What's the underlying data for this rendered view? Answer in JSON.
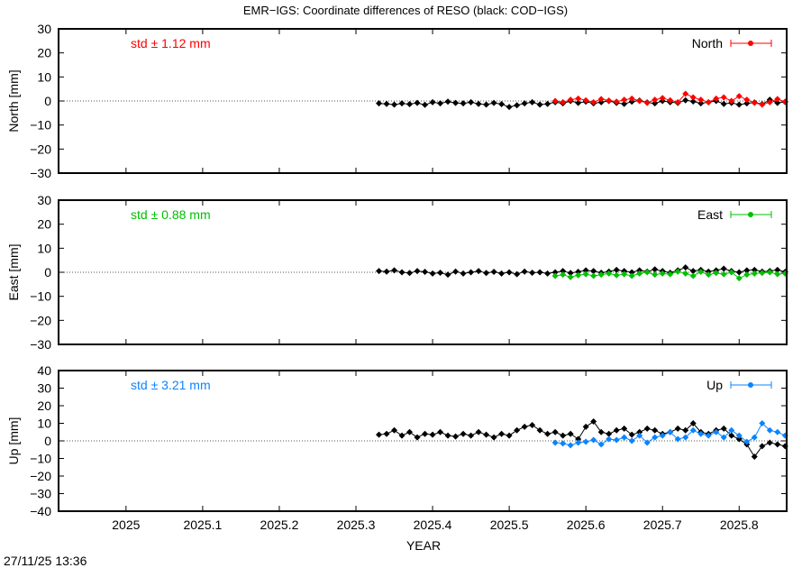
{
  "chart_data": {
    "type": "line",
    "title": "EMR−IGS: Coordinate differences of RESO (black: COD−IGS)",
    "xlabel": "YEAR",
    "xlim": [
      2024.912,
      2025.862
    ],
    "xticks": [
      "2025",
      "2025.1",
      "2025.2",
      "2025.3",
      "2025.4",
      "2025.5",
      "2025.6",
      "2025.7",
      "2025.8"
    ],
    "timestamp": "27/11/25 13:36",
    "x_black": [
      2025.33,
      2025.34,
      2025.35,
      2025.36,
      2025.37,
      2025.38,
      2025.39,
      2025.4,
      2025.41,
      2025.42,
      2025.43,
      2025.44,
      2025.45,
      2025.46,
      2025.47,
      2025.48,
      2025.49,
      2025.5,
      2025.51,
      2025.52,
      2025.53,
      2025.54,
      2025.55,
      2025.56,
      2025.57,
      2025.58,
      2025.59,
      2025.6,
      2025.61,
      2025.62,
      2025.63,
      2025.64,
      2025.65,
      2025.66,
      2025.67,
      2025.68,
      2025.69,
      2025.7,
      2025.71,
      2025.72,
      2025.73,
      2025.74,
      2025.75,
      2025.76,
      2025.77,
      2025.78,
      2025.79,
      2025.8,
      2025.81,
      2025.82,
      2025.83,
      2025.84,
      2025.85,
      2025.86
    ],
    "x_color": [
      2025.56,
      2025.57,
      2025.58,
      2025.59,
      2025.6,
      2025.61,
      2025.62,
      2025.63,
      2025.64,
      2025.65,
      2025.66,
      2025.67,
      2025.68,
      2025.69,
      2025.7,
      2025.71,
      2025.72,
      2025.73,
      2025.74,
      2025.75,
      2025.76,
      2025.77,
      2025.78,
      2025.79,
      2025.8,
      2025.81,
      2025.82,
      2025.83,
      2025.84,
      2025.85,
      2025.86
    ],
    "panels": [
      {
        "ylabel": "North [mm]",
        "ylim": [
          -30,
          30
        ],
        "yticks": [
          "30",
          "20",
          "10",
          "0",
          "−10",
          "−20",
          "−30"
        ],
        "std_label": "std ± 1.12 mm",
        "legend": "North",
        "color": "#ff0000",
        "legend_position": "top-right",
        "black": [
          -1,
          -1.2,
          -1.5,
          -1,
          -1.3,
          -0.8,
          -1.6,
          -0.5,
          -1,
          -0.3,
          -0.8,
          -1,
          -0.5,
          -1.2,
          -1.5,
          -0.8,
          -1.3,
          -2.5,
          -1.8,
          -1,
          -0.5,
          -1.5,
          -1.2,
          -0.5,
          -1,
          0,
          -0.8,
          -0.3,
          -1,
          -0.5,
          0,
          -0.8,
          -1.2,
          -0.3,
          0.2,
          -0.6,
          -1,
          0,
          -0.5,
          -0.8,
          0.3,
          -0.2,
          -1,
          -0.5,
          0,
          -1.2,
          -0.8,
          -1.5,
          -1,
          -0.6,
          -1.3,
          0.5,
          -0.8,
          -0.4
        ],
        "series": [
          0,
          -0.5,
          0.5,
          1,
          0.3,
          -0.5,
          0.8,
          0.2,
          -0.3,
          0.5,
          1,
          0,
          -0.8,
          0.5,
          1.2,
          0.3,
          -0.5,
          3,
          1.5,
          0.5,
          -0.5,
          1,
          1.5,
          0,
          2,
          0.5,
          -0.8,
          -1.5,
          -0.5,
          0.8,
          -0.3
        ]
      },
      {
        "ylabel": "East [mm]",
        "ylim": [
          -30,
          30
        ],
        "yticks": [
          "30",
          "20",
          "10",
          "0",
          "−10",
          "−20",
          "−30"
        ],
        "std_label": "std ± 0.88 mm",
        "legend": "East",
        "color": "#00c000",
        "legend_position": "top-right",
        "black": [
          0.5,
          0.3,
          0.8,
          0,
          -0.3,
          0.5,
          0.2,
          -0.5,
          -0.2,
          -1,
          0.3,
          -0.5,
          0,
          0.5,
          -0.3,
          0.2,
          -0.5,
          0,
          -0.8,
          0.3,
          -0.2,
          0,
          -0.5,
          0,
          0.5,
          -0.3,
          0.2,
          0.8,
          0.5,
          -0.2,
          0.3,
          1,
          0.5,
          0,
          0.8,
          0.3,
          1.2,
          0.5,
          -0.2,
          0.8,
          2,
          0.5,
          1,
          0.3,
          0.8,
          1.5,
          0.5,
          0,
          0.8,
          1,
          0.3,
          0.5,
          1,
          0.2
        ],
        "series": [
          -1.5,
          -1,
          -2,
          -1.2,
          -0.8,
          -1.5,
          -1,
          -0.5,
          -1.2,
          -0.8,
          -1.5,
          -0.5,
          0,
          -1,
          -0.5,
          -0.8,
          0.3,
          -0.5,
          -1.5,
          0.2,
          -1,
          -0.3,
          -0.8,
          0,
          -2.5,
          -1,
          -0.5,
          -0.3,
          0,
          -0.8,
          -0.5
        ]
      },
      {
        "ylabel": "Up [mm]",
        "ylim": [
          -40,
          40
        ],
        "yticks": [
          "40",
          "30",
          "20",
          "10",
          "0",
          "−10",
          "−20",
          "−30",
          "−40"
        ],
        "std_label": "std ± 3.21 mm",
        "legend": "Up",
        "color": "#0a84ff",
        "legend_position": "top-right",
        "black": [
          3.5,
          4,
          6,
          3,
          5,
          2,
          4,
          3.5,
          5,
          3,
          2.5,
          4,
          3,
          5,
          3.5,
          2,
          4,
          3,
          6,
          8,
          9,
          6,
          4,
          5,
          3,
          4,
          1,
          8,
          11,
          5,
          4,
          6,
          7,
          3.5,
          5,
          7,
          6,
          4,
          5,
          7,
          6,
          10,
          5,
          4,
          6,
          7,
          3,
          1,
          -2,
          -9,
          -3,
          -1,
          -2,
          -3
        ],
        "series": [
          -1,
          -1.5,
          -2.5,
          -1,
          -0.5,
          0.5,
          -2,
          1,
          0.5,
          2,
          0,
          3,
          -1,
          2,
          3,
          5,
          1,
          2,
          6,
          4,
          3,
          5,
          2,
          6,
          3,
          -0.5,
          2,
          10,
          6,
          5,
          3
        ]
      }
    ]
  }
}
